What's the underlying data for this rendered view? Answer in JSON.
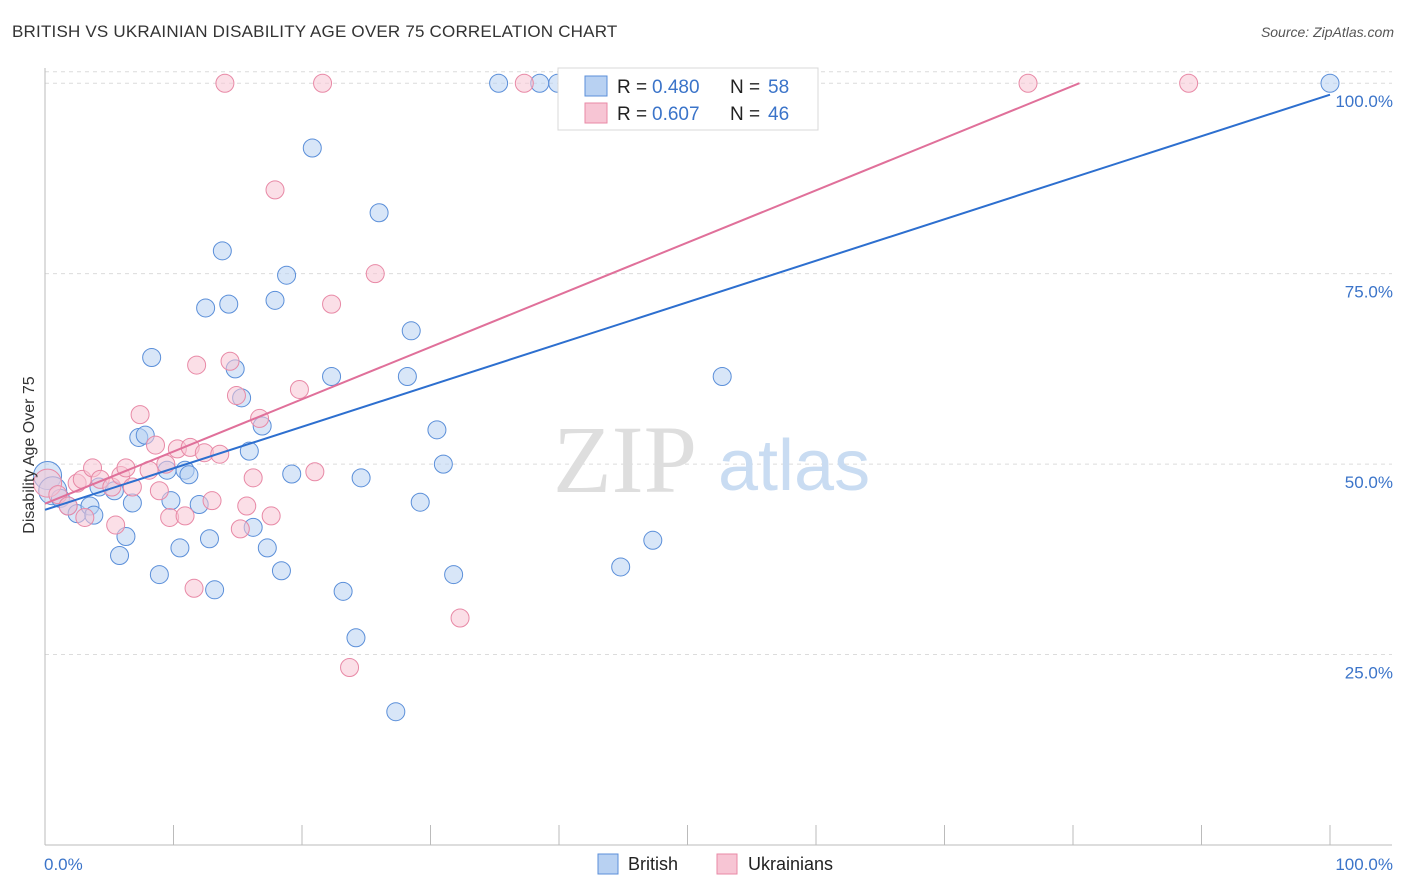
{
  "title": "BRITISH VS UKRAINIAN DISABILITY AGE OVER 75 CORRELATION CHART",
  "source": "Source: ZipAtlas.com",
  "watermark": {
    "zip": "ZIP",
    "atlas": "atlas"
  },
  "colors": {
    "british": "#5b8fd9",
    "british_fill": "#b8d1f2",
    "british_line": "#2d6fcf",
    "ukrainians": "#e889a6",
    "ukrainians_fill": "#f7c5d4",
    "ukrainians_line": "#e0709a",
    "tick": "#3b74c9",
    "grid": "#dcdcdc"
  },
  "legend": {
    "rows": [
      {
        "r_label": "R = ",
        "r_value": "0.480",
        "n_label": "N = ",
        "n_value": "58"
      },
      {
        "r_label": "R = ",
        "r_value": "0.607",
        "n_label": "N = ",
        "n_value": "46"
      }
    ]
  },
  "chart_data": {
    "type": "scatter",
    "title": "BRITISH VS UKRAINIAN DISABILITY AGE OVER 75 CORRELATION CHART",
    "xlabel": "",
    "ylabel": "Disability Age Over 75",
    "x_tick_labels": [
      "0.0%",
      "100.0%"
    ],
    "y_tick_labels": [
      "25.0%",
      "50.0%",
      "75.0%",
      "100.0%"
    ],
    "y_ticks": [
      25,
      50,
      75,
      100
    ],
    "xlim": [
      0,
      100
    ],
    "ylim": [
      0,
      102
    ],
    "grid": true,
    "legend_position": "top-center",
    "series": [
      {
        "name": "British",
        "r": 0.48,
        "n": 58,
        "trend": {
          "x0": 0,
          "y0": 44.0,
          "x1": 100,
          "y1": 98.5
        },
        "points": [
          [
            0.2,
            48.5
          ],
          [
            0.6,
            46.5
          ],
          [
            1.2,
            45.5
          ],
          [
            1.8,
            44.5
          ],
          [
            2.5,
            43.5
          ],
          [
            3.5,
            44.5
          ],
          [
            3.8,
            43.3
          ],
          [
            4.2,
            47.0
          ],
          [
            5.4,
            46.5
          ],
          [
            5.8,
            38.0
          ],
          [
            6.3,
            40.5
          ],
          [
            6.8,
            44.9
          ],
          [
            7.3,
            53.5
          ],
          [
            7.8,
            53.8
          ],
          [
            8.3,
            64.0
          ],
          [
            8.9,
            35.5
          ],
          [
            9.5,
            49.2
          ],
          [
            9.8,
            45.2
          ],
          [
            10.5,
            39.0
          ],
          [
            10.9,
            49.2
          ],
          [
            11.2,
            48.6
          ],
          [
            12.0,
            44.7
          ],
          [
            12.5,
            70.5
          ],
          [
            12.8,
            40.2
          ],
          [
            13.2,
            33.5
          ],
          [
            13.8,
            78.0
          ],
          [
            14.3,
            71.0
          ],
          [
            14.8,
            62.5
          ],
          [
            15.3,
            58.7
          ],
          [
            15.9,
            51.7
          ],
          [
            16.2,
            41.7
          ],
          [
            16.9,
            55.0
          ],
          [
            17.3,
            39.0
          ],
          [
            17.9,
            71.5
          ],
          [
            18.4,
            36.0
          ],
          [
            18.8,
            74.8
          ],
          [
            19.2,
            48.7
          ],
          [
            20.8,
            91.5
          ],
          [
            22.3,
            61.5
          ],
          [
            23.2,
            33.3
          ],
          [
            24.2,
            27.2
          ],
          [
            24.6,
            48.2
          ],
          [
            26.0,
            83.0
          ],
          [
            27.3,
            17.5
          ],
          [
            28.2,
            61.5
          ],
          [
            28.5,
            67.5
          ],
          [
            29.2,
            45.0
          ],
          [
            30.5,
            54.5
          ],
          [
            31.0,
            50.0
          ],
          [
            31.8,
            35.5
          ],
          [
            35.3,
            100
          ],
          [
            38.5,
            100
          ],
          [
            39.9,
            100
          ],
          [
            44.8,
            36.5
          ],
          [
            47.3,
            40.0
          ],
          [
            52.7,
            61.5
          ],
          [
            56.5,
            100
          ],
          [
            100,
            100
          ]
        ]
      },
      {
        "name": "Ukrainians",
        "r": 0.607,
        "n": 46,
        "trend": {
          "x0": 0,
          "y0": 44.8,
          "x1": 80.5,
          "y1": 100
        },
        "points": [
          [
            0.2,
            47.5
          ],
          [
            1.0,
            46.0
          ],
          [
            1.8,
            44.5
          ],
          [
            2.5,
            47.5
          ],
          [
            2.9,
            48.0
          ],
          [
            3.1,
            43.0
          ],
          [
            3.7,
            49.5
          ],
          [
            4.3,
            48.0
          ],
          [
            5.2,
            47.0
          ],
          [
            5.5,
            42.0
          ],
          [
            5.9,
            48.5
          ],
          [
            6.3,
            49.5
          ],
          [
            6.8,
            47.0
          ],
          [
            7.4,
            56.5
          ],
          [
            8.1,
            49.2
          ],
          [
            8.6,
            52.5
          ],
          [
            8.9,
            46.5
          ],
          [
            9.4,
            50.0
          ],
          [
            9.7,
            43.0
          ],
          [
            10.3,
            52.0
          ],
          [
            10.9,
            43.2
          ],
          [
            11.3,
            52.2
          ],
          [
            11.6,
            33.7
          ],
          [
            11.8,
            63.0
          ],
          [
            12.4,
            51.5
          ],
          [
            13.0,
            45.2
          ],
          [
            13.6,
            51.3
          ],
          [
            14.0,
            100
          ],
          [
            14.4,
            63.5
          ],
          [
            14.9,
            59.0
          ],
          [
            15.2,
            41.5
          ],
          [
            15.7,
            44.5
          ],
          [
            16.2,
            48.2
          ],
          [
            16.7,
            56.0
          ],
          [
            17.9,
            86.0
          ],
          [
            17.6,
            43.2
          ],
          [
            19.8,
            59.8
          ],
          [
            21.0,
            49.0
          ],
          [
            21.6,
            100
          ],
          [
            22.3,
            71.0
          ],
          [
            23.7,
            23.3
          ],
          [
            25.7,
            75.0
          ],
          [
            32.3,
            29.8
          ],
          [
            37.3,
            100
          ],
          [
            76.5,
            100
          ],
          [
            89.0,
            100
          ]
        ]
      }
    ]
  },
  "bottom_legend": [
    {
      "label": "British"
    },
    {
      "label": "Ukrainians"
    }
  ]
}
